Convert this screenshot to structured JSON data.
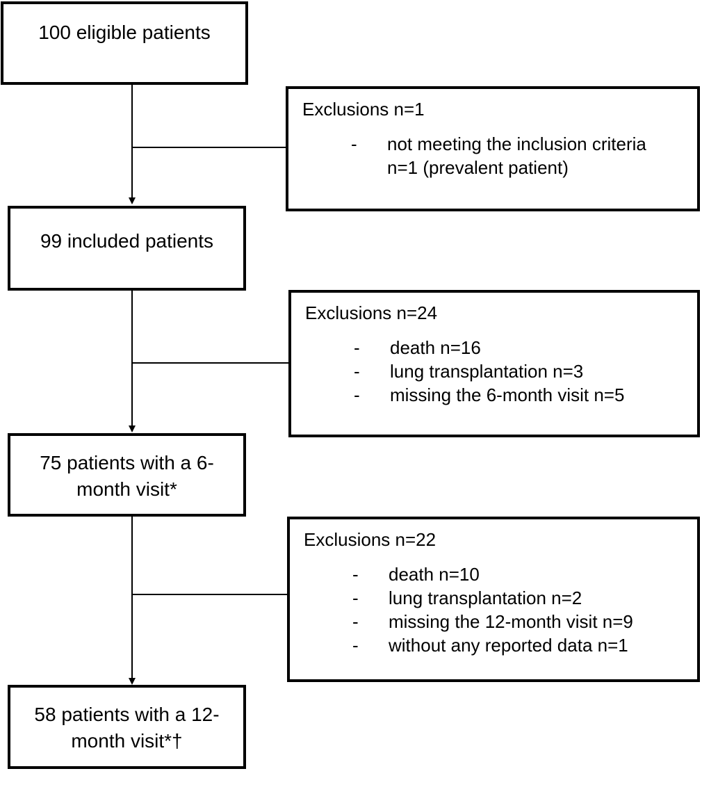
{
  "stages": [
    {
      "text": "100 eligible patients"
    },
    {
      "text": "99 included patients"
    },
    {
      "line1": "75 patients with a 6-",
      "line2": "month visit*"
    },
    {
      "line1": "58 patients with a 12-",
      "line2": "month visit*†"
    }
  ],
  "exclusions": [
    {
      "title": "Exclusions n=1",
      "items": [
        "not meeting the inclusion criteria",
        "n=1 (prevalent patient)"
      ]
    },
    {
      "title": "Exclusions n=24",
      "items": [
        "death n=16",
        "lung transplantation n=3",
        "missing the 6-month visit n=5"
      ]
    },
    {
      "title": "Exclusions n=22",
      "items": [
        "death n=10",
        "lung transplantation n=2",
        "missing the 12-month visit n=9",
        "without any reported data n=1"
      ]
    }
  ],
  "bullet": "-"
}
